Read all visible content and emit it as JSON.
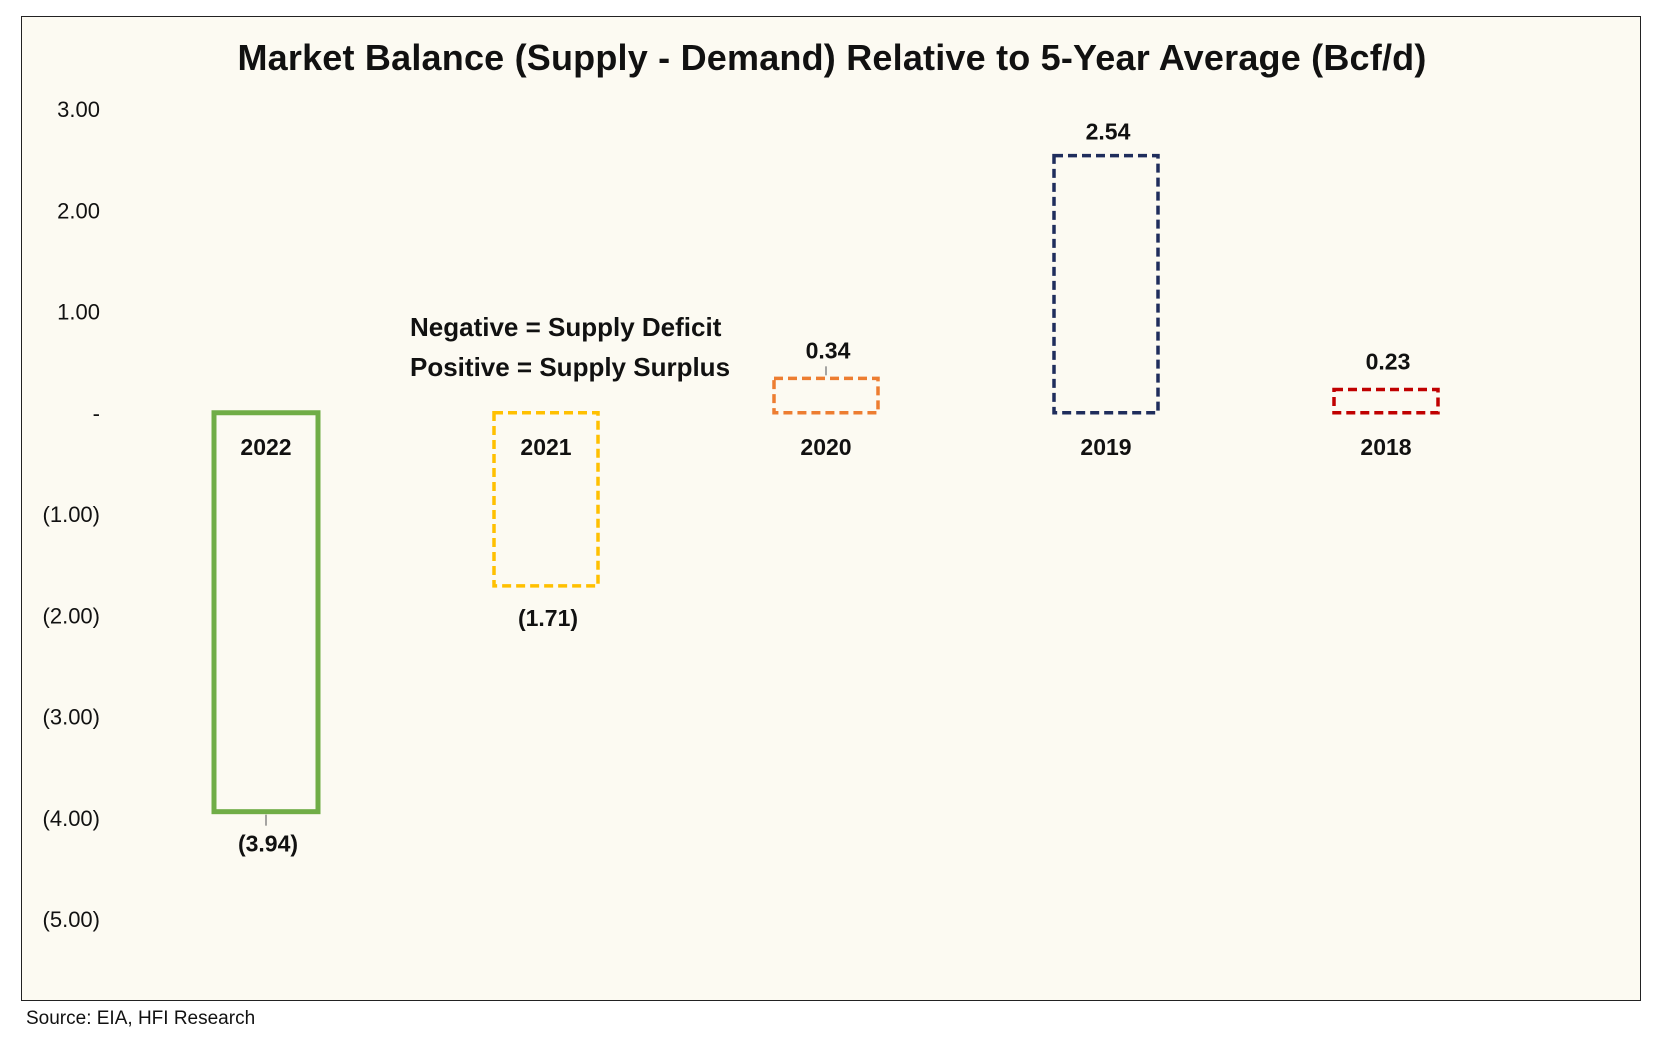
{
  "chart_data": {
    "type": "bar",
    "title": "Market Balance (Supply - Demand) Relative to 5-Year Average (Bcf/d)",
    "xlabel": "",
    "ylabel": "",
    "ylim": [
      -5,
      3
    ],
    "yticks": [
      3,
      2,
      1,
      0,
      -1,
      -2,
      -3,
      -4,
      -5
    ],
    "ytick_labels": [
      "3.00",
      "2.00",
      "1.00",
      "-",
      "(1.00)",
      "(2.00)",
      "(3.00)",
      "(4.00)",
      "(5.00)"
    ],
    "grid": false,
    "legend": "none",
    "categories": [
      "2022",
      "2021",
      "2020",
      "2019",
      "2018"
    ],
    "values": [
      -3.94,
      -1.71,
      0.34,
      2.54,
      0.23
    ],
    "data_labels": [
      "(3.94)",
      "(1.71)",
      "0.34",
      "2.54",
      "0.23"
    ],
    "bar_styles": [
      {
        "color": "#70ad47",
        "line": "solid"
      },
      {
        "color": "#ffc000",
        "line": "dashed"
      },
      {
        "color": "#ed7d31",
        "line": "dashed"
      },
      {
        "color": "#1f2d5c",
        "line": "dashed"
      },
      {
        "color": "#c00000",
        "line": "dashed"
      }
    ],
    "annotations": [
      "Negative = Supply Deficit",
      "Positive = Supply Surplus"
    ]
  },
  "source_note": "Source: EIA, HFI Research"
}
